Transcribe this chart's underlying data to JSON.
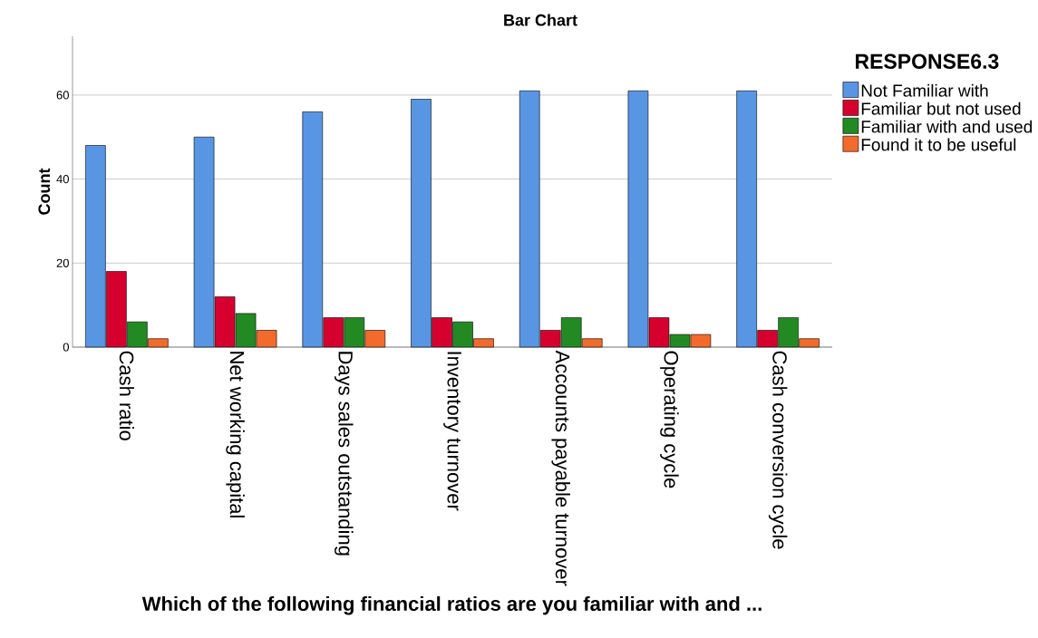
{
  "chart_data": {
    "type": "bar",
    "title": "Bar Chart",
    "xlabel": "Which of the following financial ratios are you familiar with and ...",
    "ylabel": "Count",
    "legend_title": "RESPONSE6.3",
    "categories": [
      "Cash ratio",
      "Net working capital",
      "Days sales outstanding",
      "Inventory turnover",
      "Accounts payable turnover",
      "Operating cycle",
      "Cash conversion cycle"
    ],
    "series": [
      {
        "name": "Not Familiar with",
        "color": "#5896e3",
        "values": [
          48,
          50,
          56,
          59,
          61,
          61,
          61
        ]
      },
      {
        "name": "Familiar but not used",
        "color": "#d6002f",
        "values": [
          18,
          12,
          7,
          7,
          4,
          7,
          4
        ]
      },
      {
        "name": "Familiar with and used",
        "color": "#238a23",
        "values": [
          6,
          8,
          7,
          6,
          7,
          3,
          7
        ]
      },
      {
        "name": "Found it to be useful",
        "color": "#f26b2c",
        "values": [
          2,
          4,
          4,
          2,
          2,
          3,
          2
        ]
      }
    ],
    "ylim": [
      0,
      74
    ],
    "yticks": [
      0,
      20,
      40,
      60
    ],
    "grid": "y",
    "legend": "right"
  }
}
